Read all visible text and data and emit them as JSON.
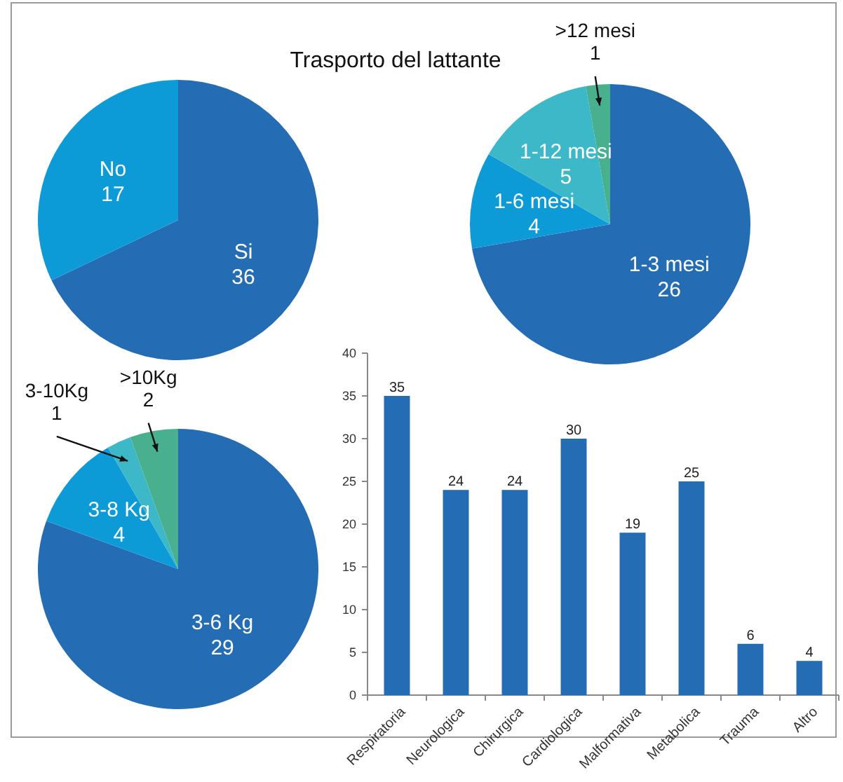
{
  "chart_data": [
    {
      "type": "pie",
      "title": "Trasporto del lattante",
      "categories": [
        "Si",
        "No"
      ],
      "values": [
        36,
        17
      ],
      "colors": [
        "#246db5",
        "#0d9bd8"
      ],
      "data_labels": true
    },
    {
      "type": "pie",
      "categories": [
        "1-3 mesi",
        "1-6 mesi",
        "1-12 mesi",
        ">12 mesi"
      ],
      "values": [
        26,
        4,
        5,
        1
      ],
      "colors": [
        "#246db5",
        "#0d9bd8",
        "#3cb8c8",
        "#48b08e"
      ],
      "data_labels": true
    },
    {
      "type": "pie",
      "categories": [
        "3-6 Kg",
        "3-8 Kg",
        "3-10Kg",
        ">10Kg"
      ],
      "values": [
        29,
        4,
        1,
        2
      ],
      "colors": [
        "#246db5",
        "#0d9bd8",
        "#3cb8c8",
        "#48b08e"
      ],
      "data_labels": true
    },
    {
      "type": "bar",
      "categories": [
        "Respiratoria",
        "Neurologica",
        "Chirurgica",
        "Cardiologica",
        "Malformativa",
        "Metabolica",
        "Trauma",
        "Altro"
      ],
      "values": [
        35,
        24,
        24,
        30,
        19,
        25,
        6,
        4
      ],
      "color": "#246db5",
      "ylim": [
        0,
        40
      ],
      "yticks": [
        0,
        5,
        10,
        15,
        20,
        25,
        30,
        35,
        40
      ],
      "data_labels": true
    }
  ]
}
